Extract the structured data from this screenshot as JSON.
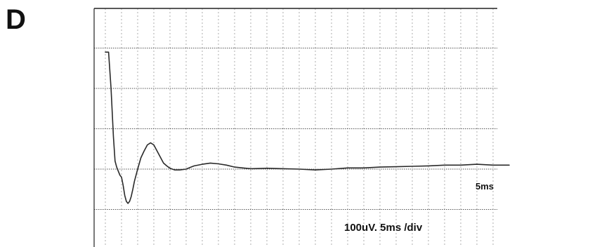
{
  "panel_label": "D",
  "chart_data": {
    "type": "line",
    "title": "",
    "xlabel": "",
    "ylabel": "",
    "xlim": [
      0,
      25
    ],
    "ylim": [
      -100,
      300
    ],
    "grid": true,
    "axis_marker": "5ms",
    "scale_note": "100uV. 5ms /div",
    "series": [
      {
        "x": [
          0,
          0.2,
          0.35,
          0.5,
          0.6,
          0.7,
          0.8,
          0.9,
          1.0,
          1.1,
          1.2,
          1.3,
          1.4,
          1.5,
          1.6,
          1.7,
          1.8,
          2.0,
          2.2,
          2.4,
          2.6,
          2.8,
          3.0,
          3.2,
          3.4,
          3.6,
          3.8,
          4.0,
          4.3,
          4.6,
          5.0,
          5.3,
          5.5,
          6.0,
          6.5,
          7.0,
          7.5,
          8.0,
          8.5,
          9.0,
          10.0,
          11.0,
          12.0,
          13.0,
          14.0,
          15.0,
          16.0,
          17.0,
          18.0,
          19.0,
          20.0,
          21.0,
          22.0,
          23.0,
          24.0,
          25.0
        ],
        "y": [
          290,
          290,
          200,
          80,
          20,
          5,
          -5,
          -15,
          -20,
          -40,
          -65,
          -80,
          -85,
          -80,
          -68,
          -50,
          -30,
          0,
          28,
          45,
          60,
          65,
          60,
          45,
          30,
          15,
          8,
          2,
          -2,
          -2,
          0,
          5,
          8,
          12,
          15,
          13,
          10,
          5,
          3,
          1,
          2,
          1,
          0,
          -2,
          0,
          3,
          3,
          5,
          6,
          7,
          8,
          10,
          10,
          12,
          10,
          10
        ]
      }
    ]
  }
}
